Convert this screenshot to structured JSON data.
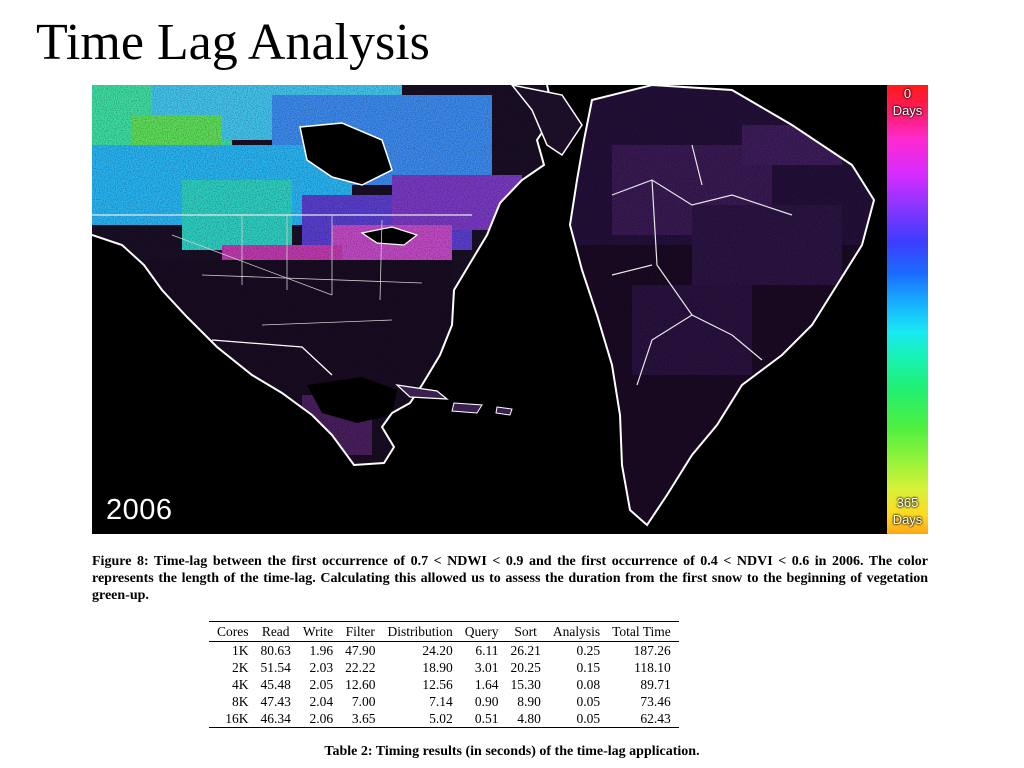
{
  "slide": {
    "title": "Time Lag Analysis"
  },
  "figure": {
    "year": "2006",
    "scale": {
      "top_value": "0",
      "top_unit": "Days",
      "bottom_value": "365",
      "bottom_unit": "Days"
    },
    "caption": "Figure 8: Time-lag between the first occurrence of 0.7 < NDWI < 0.9 and the first occurrence of 0.4 < NDVI < 0.6 in 2006. The color represents the length of the time-lag. Calculating this allowed us to assess the duration from the first snow to the beginning of vegetation green-up."
  },
  "table": {
    "columns": [
      "Cores",
      "Read",
      "Write",
      "Filter",
      "Distribution",
      "Query",
      "Sort",
      "Analysis",
      "Total Time"
    ],
    "rows": [
      [
        "1K",
        "80.63",
        "1.96",
        "47.90",
        "24.20",
        "6.11",
        "26.21",
        "0.25",
        "187.26"
      ],
      [
        "2K",
        "51.54",
        "2.03",
        "22.22",
        "18.90",
        "3.01",
        "20.25",
        "0.15",
        "118.10"
      ],
      [
        "4K",
        "45.48",
        "2.05",
        "12.60",
        "12.56",
        "1.64",
        "15.30",
        "0.08",
        "89.71"
      ],
      [
        "8K",
        "47.43",
        "2.04",
        "7.00",
        "7.14",
        "0.90",
        "8.90",
        "0.05",
        "73.46"
      ],
      [
        "16K",
        "46.34",
        "2.06",
        "3.65",
        "5.02",
        "0.51",
        "4.80",
        "0.05",
        "62.43"
      ]
    ],
    "caption": "Table 2: Timing results (in seconds) of the time-lag application."
  }
}
